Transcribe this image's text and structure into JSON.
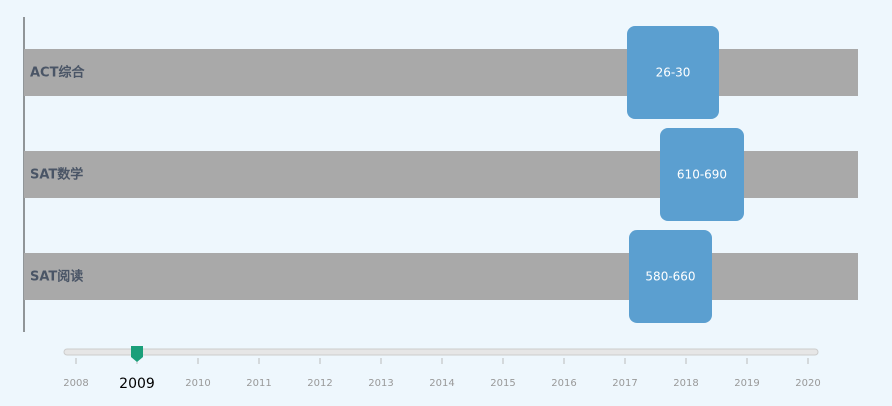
{
  "rows": [
    {
      "label": "ACT综合",
      "range": "26-30"
    },
    {
      "label": "SAT数学",
      "range": "610-690"
    },
    {
      "label": "SAT阅读",
      "range": "580-660"
    }
  ],
  "timeline": {
    "years": [
      2008,
      2009,
      2010,
      2011,
      2012,
      2013,
      2014,
      2015,
      2016,
      2017,
      2018,
      2019,
      2020
    ],
    "selected": 2009
  }
}
